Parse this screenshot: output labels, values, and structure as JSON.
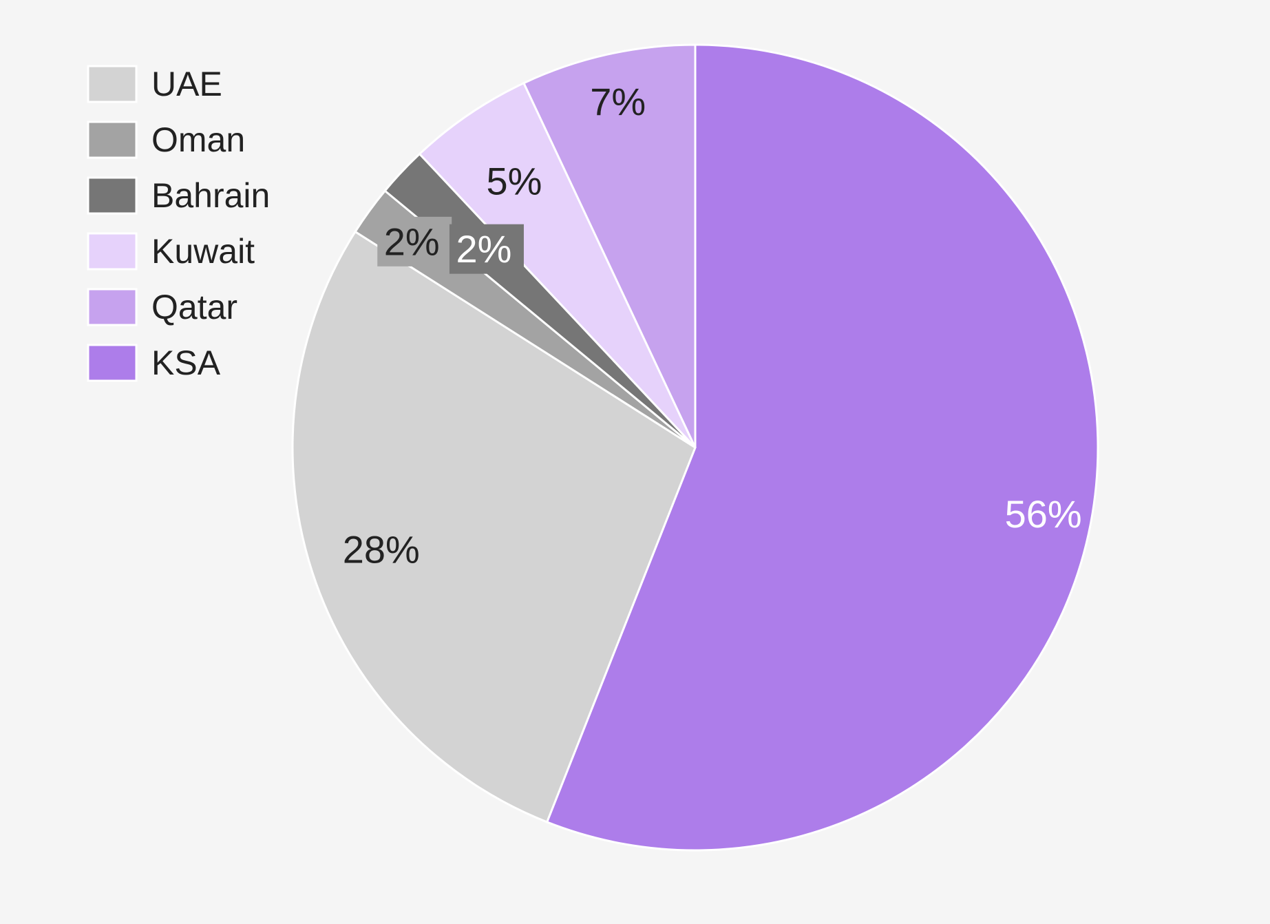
{
  "chart_data": {
    "type": "pie",
    "categories": [
      "UAE",
      "Oman",
      "Bahrain",
      "Kuwait",
      "Qatar",
      "KSA"
    ],
    "values": [
      28,
      2,
      2,
      5,
      7,
      56
    ],
    "labels": [
      "28%",
      "2%",
      "2%",
      "5%",
      "7%",
      "56%"
    ],
    "colors": [
      "#d3d3d3",
      "#a3a3a3",
      "#767676",
      "#e6d2fb",
      "#c6a2ee",
      "#ad7dea"
    ],
    "label_colors": [
      "#222222",
      "#222222",
      "#ffffff",
      "#222222",
      "#222222",
      "#ffffff"
    ],
    "legend": {
      "position": "top-left",
      "entries": [
        "UAE",
        "Oman",
        "Bahrain",
        "Kuwait",
        "Qatar",
        "KSA"
      ]
    },
    "slice_order_clockwise_from_top": [
      "KSA",
      "UAE",
      "Oman",
      "Bahrain",
      "Kuwait",
      "Qatar"
    ],
    "background": "#f5f5f5"
  }
}
